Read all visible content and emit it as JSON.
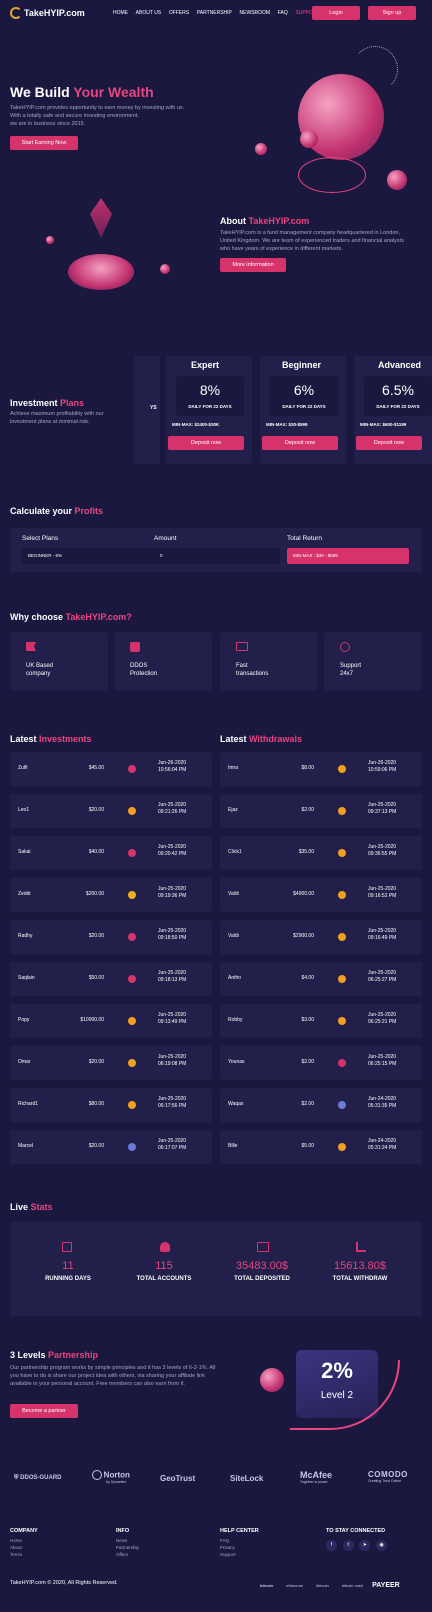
{
  "header": {
    "logo": "TakeHYIP.com",
    "nav": [
      "HOME",
      "ABOUT US",
      "OFFERS",
      "PARTNERSHIP",
      "NEWSROOM",
      "FAQ",
      "SUPPORT"
    ],
    "login": "Login",
    "signup": "Sign up"
  },
  "hero": {
    "title_a": "We Build ",
    "title_b": "Your Wealth",
    "lines": [
      "TakeHYIP.com provides opportunity to earn money by investing with us.",
      "With a totally safe and secure investing environment.",
      "we are in business since 2015."
    ],
    "cta": "Start Earning Now"
  },
  "about": {
    "title_a": "About ",
    "title_b": "TakeHYIP.com",
    "text": "TakeHYIP.com is a fund management company headquartered in London, United Kingdom. We are team of experienced traders and financial analysts who have years of experience in different markets.",
    "cta": "More information"
  },
  "plans": {
    "title_a": "Investment ",
    "title_b": "Plans",
    "subtitle": "Achieve maximum profitability with our investment plans at minimal risk.",
    "cut_label": "YS",
    "items": [
      {
        "name": "Expert",
        "rate": "8%",
        "daily": "DAILY FOR 22 DAYS",
        "minmax": "MIN-MAX: $2400-$30K",
        "cta": "Deposit now"
      },
      {
        "name": "Beginner",
        "rate": "6%",
        "daily": "DAILY FOR 22 DAYS",
        "minmax": "MIN-MAX: $30-$599",
        "cta": "Deposit now"
      },
      {
        "name": "Advanced",
        "rate": "6.5%",
        "daily": "DAILY FOR 22 DAYS",
        "minmax": "MIN-MAX: $600-$1199",
        "cta": "Deposit now"
      }
    ]
  },
  "calc": {
    "title_a": "Calculate your ",
    "title_b": "Profits",
    "select_label": "Select Plans",
    "select_value": "BEGINNER - 6%",
    "amount_label": "Amount",
    "amount_value": "0",
    "return_label": "Total Return",
    "return_value": "MIN-MAX : $30 - $599"
  },
  "why": {
    "title_a": "Why choose ",
    "title_b": "TakeHYIP.com?",
    "items": [
      {
        "icon": "flag-icon",
        "l1": "UK Based",
        "l2": "company"
      },
      {
        "icon": "shield-user-icon",
        "l1": "DDOS",
        "l2": "Protection"
      },
      {
        "icon": "transfer-icon",
        "l1": "Fast",
        "l2": "transactions"
      },
      {
        "icon": "support-icon",
        "l1": "Support",
        "l2": "24x7"
      }
    ]
  },
  "investments": {
    "title_a": "Latest ",
    "title_b": "Investments",
    "rows": [
      {
        "name": "Zulfi",
        "amount": "$45.00",
        "coin": "#d6336c",
        "date": "Jun-26-2020",
        "time": "10:56:04 PM"
      },
      {
        "name": "Leo1",
        "amount": "$20.00",
        "coin": "#f0a020",
        "date": "Jun-25-2020",
        "time": "09:21:26 PM"
      },
      {
        "name": "Sakai",
        "amount": "$40.00",
        "coin": "#d6336c",
        "date": "Jun-25-2020",
        "time": "09:20:42 PM"
      },
      {
        "name": "Zeddi",
        "amount": "$200.00",
        "coin": "#f0b020",
        "date": "Jun-25-2020",
        "time": "09:19:36 PM"
      },
      {
        "name": "Radhy",
        "amount": "$20.00",
        "coin": "#d6336c",
        "date": "Jun-25-2020",
        "time": "09:18:50 PM"
      },
      {
        "name": "Saqlain",
        "amount": "$50.00",
        "coin": "#d6336c",
        "date": "Jun-25-2020",
        "time": "09:18:13 PM"
      },
      {
        "name": "Popy",
        "amount": "$10000.00",
        "coin": "#f0a020",
        "date": "Jun-25-2020",
        "time": "09:13:49 PM"
      },
      {
        "name": "Omar",
        "amount": "$20.00",
        "coin": "#f0a020",
        "date": "Jun-25-2020",
        "time": "06:19:08 PM"
      },
      {
        "name": "Richard1",
        "amount": "$80.00",
        "coin": "#f0a020",
        "date": "Jun-25-2020",
        "time": "06:17:56 PM"
      },
      {
        "name": "Marcel",
        "amount": "$20.00",
        "coin": "#6a7bd6",
        "date": "Jun-25-2020",
        "time": "06:17:07 PM"
      }
    ]
  },
  "withdrawals": {
    "title_a": "Latest ",
    "title_b": "Withdrawals",
    "rows": [
      {
        "name": "Imra",
        "amount": "$8.00",
        "coin": "#f0a020",
        "date": "Jun-26-2020",
        "time": "10:59:06 PM"
      },
      {
        "name": "Ejaz",
        "amount": "$2.00",
        "coin": "#f0a020",
        "date": "Jun-25-2020",
        "time": "09:37:13 PM"
      },
      {
        "name": "Click1",
        "amount": "$35.00",
        "coin": "#f0a020",
        "date": "Jun-25-2020",
        "time": "09:36:55 PM"
      },
      {
        "name": "Valdi",
        "amount": "$4900.00",
        "coin": "#f0a020",
        "date": "Jun-25-2020",
        "time": "09:16:52 PM"
      },
      {
        "name": "Valdi",
        "amount": "$2900.00",
        "coin": "#f0a020",
        "date": "Jun-25-2020",
        "time": "09:16:49 PM"
      },
      {
        "name": "Antho",
        "amount": "$4.00",
        "coin": "#f0a020",
        "date": "Jun-25-2020",
        "time": "06:25:27 PM"
      },
      {
        "name": "Robby",
        "amount": "$3.00",
        "coin": "#f0a020",
        "date": "Jun-25-2020",
        "time": "06:25:21 PM"
      },
      {
        "name": "Younas",
        "amount": "$2.00",
        "coin": "#d6336c",
        "date": "Jun-25-2020",
        "time": "06:25:15 PM"
      },
      {
        "name": "Waqas",
        "amount": "$2.00",
        "coin": "#6a7bd6",
        "date": "Jun-24-2020",
        "time": "05:31:35 PM"
      },
      {
        "name": "Bille",
        "amount": "$5.00",
        "coin": "#f0a020",
        "date": "Jun-24-2020",
        "time": "05:31:24 PM"
      }
    ]
  },
  "live": {
    "title_a": "Live ",
    "title_b": "Stats",
    "items": [
      {
        "icon": "calendar-icon",
        "value": "11",
        "label": "RUNNING DAYS"
      },
      {
        "icon": "accounts-icon",
        "value": "115",
        "label": "TOTAL ACCOUNTS"
      },
      {
        "icon": "deposit-icon",
        "value": "35483.00$",
        "label": "TOTAL DEPOSITED"
      },
      {
        "icon": "withdraw-icon",
        "value": "15613.80$",
        "label": "TOTAL WITHDRAW"
      }
    ]
  },
  "partner": {
    "title_a": "3 Levels ",
    "title_b": "Partnership",
    "text": "Our partnership program works by simple principles and it has 3 levels of 6-2-1%. All you have to do is share our project idea with others, via sharing your affiliate link available in your personal account. Free members can also earn from it.",
    "cta": "Become a partner",
    "percent": "2%",
    "level": "Level 2"
  },
  "trust": [
    "DDOS-GUARD",
    "Norton",
    "GeoTrust",
    "SiteLock",
    "McAfee",
    "COMODO"
  ],
  "trust_sub": {
    "norton": "by Symantec",
    "mcafee": "Together is power.",
    "comodo": "Creating Trust Online"
  },
  "footer": {
    "company": {
      "title": "COMPANY",
      "links": [
        "Home",
        "About",
        "Terms"
      ]
    },
    "info": {
      "title": "INFO",
      "links": [
        "News",
        "Partnership",
        "Offers"
      ]
    },
    "help": {
      "title": "HELP CENTER",
      "links": [
        "FAQ",
        "Privacy",
        "Support"
      ]
    },
    "connect": {
      "title": "TO STAY CONNECTED",
      "icons": [
        "facebook-icon",
        "twitter-icon",
        "telegram-icon",
        "instagram-icon"
      ]
    },
    "copyright": "TakeHYIP.com © 2020, All Rights Reserved.",
    "payments": [
      "bitcoin",
      "ethereum",
      "litecoin",
      "bitcoin cash",
      "PAYEER"
    ]
  },
  "colors": {
    "bg": "#1b1840",
    "accent": "#e8457f",
    "button": "#d6336c",
    "card": "#221f4a"
  }
}
